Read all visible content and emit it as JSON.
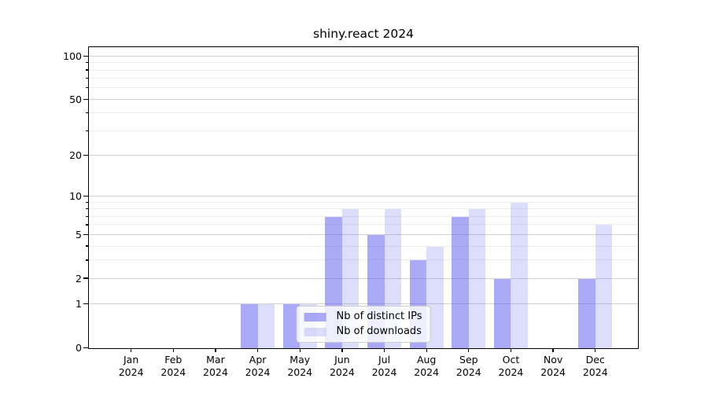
{
  "title": "shiny.react 2024",
  "chart_data": {
    "type": "bar",
    "title": "shiny.react 2024",
    "categories": [
      "Jan",
      "Feb",
      "Mar",
      "Apr",
      "May",
      "Jun",
      "Jul",
      "Aug",
      "Sep",
      "Oct",
      "Nov",
      "Dec"
    ],
    "x_sublabel_year": "2024",
    "series": [
      {
        "name": "Nb of distinct IPs",
        "color": "rgba(85,85,238,0.5)",
        "values": [
          0,
          0,
          0,
          1,
          1,
          7,
          5,
          3,
          7,
          2,
          0,
          2
        ]
      },
      {
        "name": "Nb of downloads",
        "color": "rgba(85,85,238,0.2)",
        "values": [
          0,
          0,
          0,
          1,
          1,
          8,
          8,
          4,
          8,
          9,
          0,
          6
        ]
      }
    ],
    "y_scale": "log1p",
    "ylim": [
      0,
      115
    ],
    "y_major_ticks": [
      0,
      1,
      2,
      5,
      10,
      20,
      50,
      100
    ],
    "y_minor_ticks": [
      3,
      4,
      6,
      7,
      8,
      9,
      30,
      40,
      60,
      70,
      80,
      90
    ],
    "grid": true,
    "legend_position": "lower center"
  },
  "legend": {
    "items": [
      {
        "label": "Nb of distinct IPs"
      },
      {
        "label": "Nb of downloads"
      }
    ]
  },
  "colors": {
    "bar_distinct_ips": "rgba(85,85,238,0.5)",
    "bar_downloads": "rgba(85,85,238,0.2)",
    "grid_major": "#d2d2d2",
    "grid_minor": "#ededed",
    "axis": "#000000",
    "legend_border": "#cccccc"
  }
}
